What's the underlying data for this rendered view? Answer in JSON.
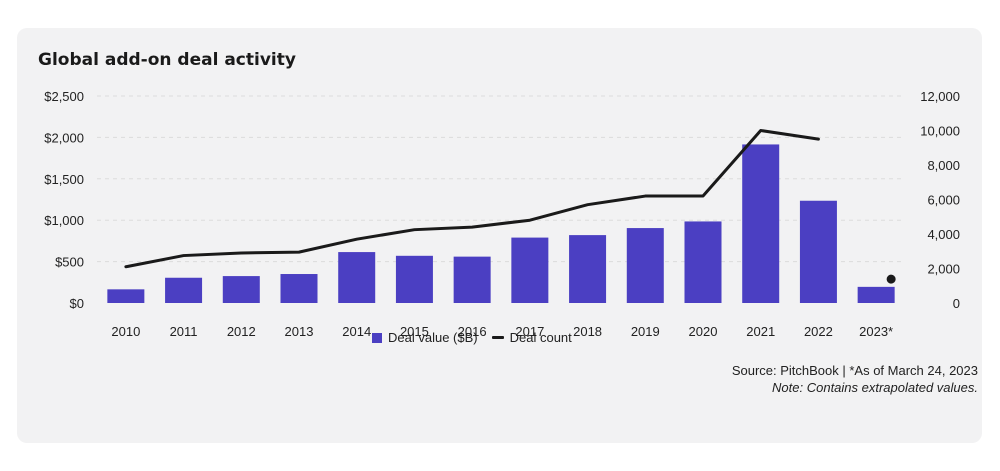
{
  "chart_data": {
    "type": "bar",
    "title": "Global add-on deal activity",
    "categories": [
      "2010",
      "2011",
      "2012",
      "2013",
      "2014",
      "2015",
      "2016",
      "2017",
      "2018",
      "2019",
      "2020",
      "2021",
      "2022",
      "2023*"
    ],
    "series": [
      {
        "name": "Deal value ($B)",
        "type": "bar",
        "axis": "left",
        "values": [
          165,
          305,
          325,
          350,
          615,
          570,
          560,
          790,
          820,
          905,
          985,
          1915,
          1235,
          195
        ],
        "color": "#4b3fc2"
      },
      {
        "name": "Deal count",
        "type": "line",
        "axis": "right",
        "values": [
          2100,
          2750,
          2900,
          2950,
          3700,
          4250,
          4400,
          4800,
          5700,
          6200,
          6200,
          10000,
          9500,
          null
        ],
        "color": "#1a1a1a"
      },
      {
        "name": "Deal count",
        "type": "point",
        "axis": "right",
        "values": [
          null,
          null,
          null,
          null,
          null,
          null,
          null,
          null,
          null,
          null,
          null,
          null,
          null,
          1500
        ],
        "color": "#1a1a1a"
      }
    ],
    "y_left": {
      "min": 0,
      "max": 2500,
      "ticks": [
        "$0",
        "$500",
        "$1,000",
        "$1,500",
        "$2,000",
        "$2,500"
      ]
    },
    "y_right": {
      "min": 0,
      "max": 12000,
      "ticks": [
        "0",
        "2,000",
        "4,000",
        "6,000",
        "8,000",
        "10,000",
        "12,000"
      ]
    },
    "grid": true,
    "legend_position": "bottom-center"
  },
  "legend": {
    "bar_label": "Deal value ($B)",
    "line_label": "Deal count"
  },
  "source": {
    "line1": "Source: PitchBook  |  *As of March 24, 2023",
    "line2": "Note: Contains extrapolated values."
  },
  "colors": {
    "bar": "#4b3fc2",
    "line": "#1a1a1a",
    "background": "#f2f2f3",
    "grid": "#dcdcdc"
  }
}
